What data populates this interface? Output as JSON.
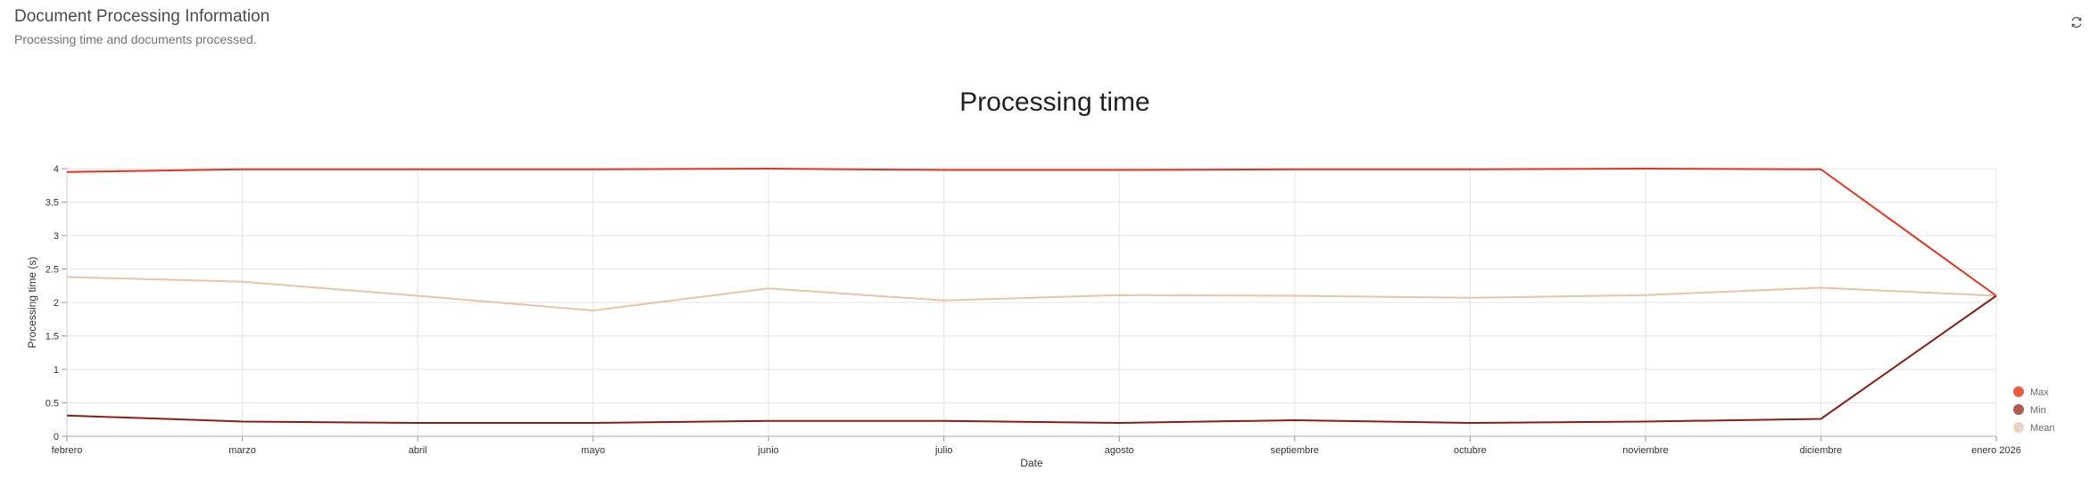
{
  "header": {
    "title": "Document Processing Information",
    "subtitle": "Processing time and documents processed.",
    "refresh_icon": "refresh-icon"
  },
  "chart_data": {
    "type": "line",
    "title": "Processing time",
    "xlabel": "Date",
    "ylabel": "Processing time (s)",
    "ylim": [
      0,
      4
    ],
    "yticks": [
      "0",
      "0.5",
      "1",
      "1.5",
      "2",
      "2.5",
      "3",
      "3.5",
      "4"
    ],
    "categories": [
      "febrero",
      "marzo",
      "abril",
      "mayo",
      "junio",
      "julio",
      "agosto",
      "septiembre",
      "octubre",
      "noviembre",
      "diciembre",
      "enero 2026"
    ],
    "grid": true,
    "legend_position": "bottom-right",
    "series": [
      {
        "name": "Max",
        "color": "#e8311a",
        "legend_color": "#ea5a45",
        "values": [
          3.95,
          3.99,
          3.99,
          3.99,
          4.0,
          3.98,
          3.98,
          3.99,
          3.99,
          4.0,
          3.99,
          2.1
        ]
      },
      {
        "name": "Min",
        "color": "#8b1e14",
        "legend_color": "#b25a50",
        "values": [
          0.31,
          0.22,
          0.2,
          0.2,
          0.23,
          0.23,
          0.2,
          0.24,
          0.2,
          0.22,
          0.26,
          2.1
        ]
      },
      {
        "name": "Mean",
        "color": "#e8c4a4",
        "legend_color": "#ecd3bd",
        "values": [
          2.38,
          2.31,
          2.1,
          1.88,
          2.21,
          2.03,
          2.11,
          2.1,
          2.07,
          2.11,
          2.22,
          2.1
        ]
      }
    ]
  }
}
